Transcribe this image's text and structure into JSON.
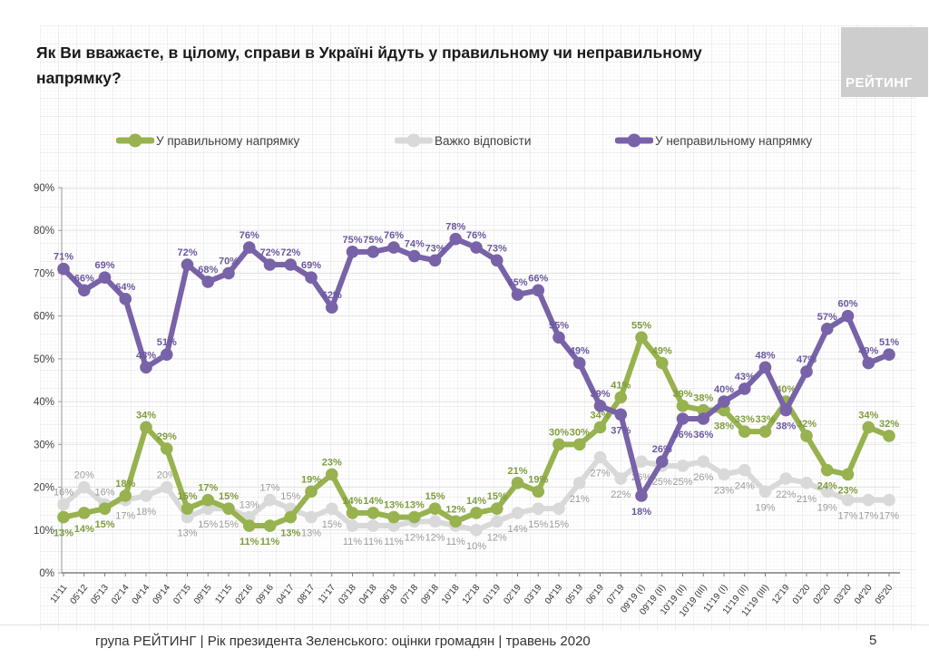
{
  "header": {
    "title": "Як Ви вважаєте, в цілому, справи в Україні йдуть у правильному чи неправильному напрямку?",
    "logo_text": "РЕЙТИНГ"
  },
  "legend": [
    {
      "label": "У правильному напрямку",
      "color": "#97B24E"
    },
    {
      "label": "Важко відповісти",
      "color": "#D9D9D9"
    },
    {
      "label": "У неправильному напрямку",
      "color": "#7862A8"
    }
  ],
  "footer": {
    "text": "група РЕЙТИНГ |  Рік президента Зеленського: оцінки громадян | травень 2020",
    "page_number": "5"
  },
  "chart_data": {
    "type": "line",
    "title": "Як Ви вважаєте, в цілому, справи в Україні йдуть у правильному чи неправильному напрямку?",
    "categories": [
      "11'11",
      "05'12",
      "05'13",
      "02'14",
      "04'14",
      "09'14",
      "07'15",
      "09'15",
      "11'15",
      "02'16",
      "09'16",
      "04'17",
      "08'17",
      "11'17",
      "03'18",
      "04'18",
      "06'18",
      "07'18",
      "09'18",
      "10'18",
      "12'18",
      "01'19",
      "02'19",
      "03'19",
      "04'19",
      "05'19",
      "06'19",
      "07'19",
      "09'19 (I)",
      "09'19 (II)",
      "10'19 (II)",
      "10'19 (III)",
      "11'19 (I)",
      "11'19 (II)",
      "11'19 (III)",
      "12'19",
      "01'20",
      "02'20",
      "03'20",
      "04'20",
      "05'20"
    ],
    "series": [
      {
        "name": "У правильному напрямку",
        "color": "#97B24E",
        "label_color": "#7E9C3D",
        "values": [
          13,
          14,
          15,
          18,
          34,
          29,
          15,
          17,
          15,
          11,
          11,
          13,
          19,
          23,
          14,
          14,
          13,
          13,
          15,
          12,
          14,
          15,
          21,
          19,
          30,
          30,
          34,
          41,
          55,
          49,
          39,
          38,
          38,
          33,
          33,
          40,
          32,
          24,
          23,
          34,
          32
        ],
        "label_default": "above",
        "label_exceptions": [
          0,
          1,
          2,
          9,
          10,
          11,
          32,
          37,
          38
        ]
      },
      {
        "name": "Важко відповісти",
        "color": "#D9D9D9",
        "label_color": "#9B9B9B",
        "values": [
          16,
          20,
          16,
          17,
          18,
          20,
          13,
          15,
          15,
          13,
          17,
          15,
          13,
          15,
          11,
          11,
          11,
          12,
          12,
          11,
          10,
          12,
          14,
          15,
          15,
          21,
          27,
          22,
          26,
          25,
          25,
          26,
          23,
          24,
          19,
          22,
          21,
          19,
          17,
          17,
          17
        ],
        "label_default": "below",
        "label_exceptions": [
          0,
          1,
          2,
          5,
          9,
          10,
          11
        ]
      },
      {
        "name": "У неправильному напрямку",
        "color": "#7862A8",
        "label_color": "#6C579E",
        "values": [
          71,
          66,
          69,
          64,
          48,
          51,
          72,
          68,
          70,
          76,
          72,
          72,
          69,
          62,
          75,
          75,
          76,
          74,
          73,
          78,
          76,
          73,
          65,
          66,
          55,
          49,
          39,
          37,
          18,
          26,
          36,
          36,
          40,
          43,
          48,
          38,
          47,
          57,
          60,
          49,
          51
        ],
        "label_default": "above",
        "label_exceptions": [
          27,
          28,
          30,
          31,
          35
        ]
      }
    ],
    "draw_order": [
      1,
      0,
      2
    ],
    "ylim": [
      0,
      90
    ],
    "ytick_step": 10,
    "ytick_suffix": "%",
    "grid": true,
    "legend_position": "top"
  }
}
